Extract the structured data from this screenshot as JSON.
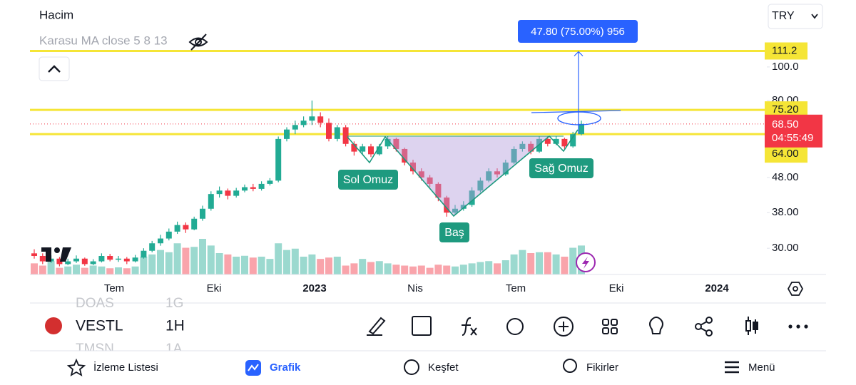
{
  "header": {
    "indicator": "Hacim",
    "ma_label": "Karasu MA close 5 8 13",
    "currency": "TRY"
  },
  "chart_data": {
    "type": "candlestick",
    "log_scale": true,
    "ylim": [
      25.2,
      156
    ],
    "yticks": [
      {
        "value": 30,
        "label": "30.00"
      },
      {
        "value": 38,
        "label": "38.00"
      },
      {
        "value": 48,
        "label": "48.00"
      },
      {
        "value": 80,
        "label": "80.00"
      },
      {
        "value": 100,
        "label": "100.0"
      }
    ],
    "xticks": [
      "Tem",
      "Eki",
      "2023",
      "Nis",
      "Tem",
      "Eki",
      "2024"
    ],
    "up_color": "#22ab94",
    "down_color": "#f23645",
    "open": [
      29,
      28.5,
      27.5,
      28,
      27,
      27.5,
      28,
      27,
      27.5,
      28.5,
      27.8,
      28,
      27.5,
      28.2,
      29.5,
      31,
      32,
      33.5,
      35,
      34,
      36.5,
      39,
      43,
      44,
      42.5,
      44,
      45,
      44.5,
      46,
      47,
      62,
      66,
      68,
      70,
      72,
      69,
      62,
      67,
      60,
      57,
      59,
      56,
      59,
      62,
      58,
      53,
      50,
      48,
      46,
      42,
      38,
      39,
      40,
      44,
      47,
      50,
      49,
      53,
      58,
      60,
      57,
      62,
      60,
      62,
      59,
      64
    ],
    "high": [
      29.8,
      29,
      28.6,
      28.3,
      28,
      28.6,
      28.2,
      27.9,
      29,
      28.9,
      28.5,
      28.3,
      28.7,
      30,
      31.5,
      32.8,
      34.2,
      35.8,
      35.6,
      37,
      39.8,
      43.8,
      45.2,
      44.6,
      44.8,
      45.8,
      46,
      46.8,
      47.8,
      63,
      67,
      70,
      72,
      80,
      74,
      71,
      68,
      68,
      61,
      60,
      60,
      60,
      63,
      62.5,
      58.5,
      54,
      51,
      48.8,
      46.5,
      42.5,
      40,
      41,
      45,
      48,
      51,
      51,
      54,
      59,
      61,
      61,
      63,
      63,
      63,
      62.5,
      65,
      70
    ],
    "low": [
      28,
      27,
      27.2,
      26.6,
      26.8,
      27.2,
      26.7,
      26.8,
      27.3,
      27.5,
      27.4,
      27,
      27.3,
      28,
      29.2,
      30.5,
      31.6,
      33,
      33.2,
      33.8,
      36,
      38.5,
      42,
      41.5,
      42,
      43.5,
      43.8,
      44,
      45.5,
      46.5,
      61,
      64,
      67,
      68,
      67,
      61,
      61,
      59,
      55.5,
      56,
      55,
      55.5,
      58,
      57,
      52,
      49,
      47,
      45,
      41,
      37,
      37.5,
      38.5,
      39.5,
      43.5,
      46.5,
      48,
      48.5,
      52.5,
      57,
      56,
      56.5,
      59,
      59.5,
      58,
      58.5,
      63.5
    ],
    "close": [
      28.5,
      27.5,
      28,
      27,
      27.5,
      28,
      27,
      27.5,
      28.5,
      27.8,
      28,
      27.5,
      28.2,
      29.5,
      31,
      32,
      33.5,
      35,
      34,
      36.5,
      39,
      43,
      44,
      42.5,
      44,
      45,
      44.5,
      46,
      47,
      62,
      66,
      68,
      70,
      72,
      69,
      62,
      67,
      60,
      57,
      59,
      56,
      59,
      62,
      58,
      53,
      50,
      48,
      46,
      42,
      38,
      39,
      40,
      44,
      47,
      50,
      49,
      53,
      58,
      60,
      57,
      62,
      60,
      62,
      59,
      64,
      68.5
    ],
    "volume": [
      25,
      20,
      30,
      15,
      18,
      22,
      15,
      20,
      18,
      14,
      16,
      14,
      18,
      40,
      45,
      55,
      50,
      70,
      60,
      62,
      80,
      65,
      48,
      45,
      40,
      42,
      38,
      40,
      35,
      70,
      55,
      58,
      40,
      45,
      35,
      38,
      40,
      20,
      25,
      35,
      28,
      30,
      25,
      22,
      20,
      18,
      20,
      15,
      22,
      20,
      18,
      22,
      25,
      28,
      30,
      25,
      32,
      45,
      55,
      48,
      50,
      50,
      45,
      40,
      60,
      65
    ],
    "levels": [
      {
        "value": 111.2,
        "label": "111.2"
      },
      {
        "value": 75.2,
        "label": "75.20"
      },
      {
        "value": 64,
        "label": "64.00"
      }
    ],
    "level_color": "#f5e536",
    "last_price": {
      "value": 68.5,
      "label": "68.50",
      "countdown": "04:55:49"
    },
    "measure": {
      "label": "47.80 (75.00%) 956"
    },
    "annotations": [
      "Sol Omuz",
      "Baş",
      "Sağ Omuz"
    ]
  },
  "toolbar": {
    "symbols": [
      {
        "symbol": "DOAS",
        "interval": "1G"
      },
      {
        "symbol": "VESTL",
        "interval": "1H"
      },
      {
        "symbol": "TMSN",
        "interval": "1A"
      }
    ]
  },
  "nav": [
    "İzleme Listesi",
    "Grafik",
    "Keşfet",
    "Fikirler",
    "Menü"
  ]
}
